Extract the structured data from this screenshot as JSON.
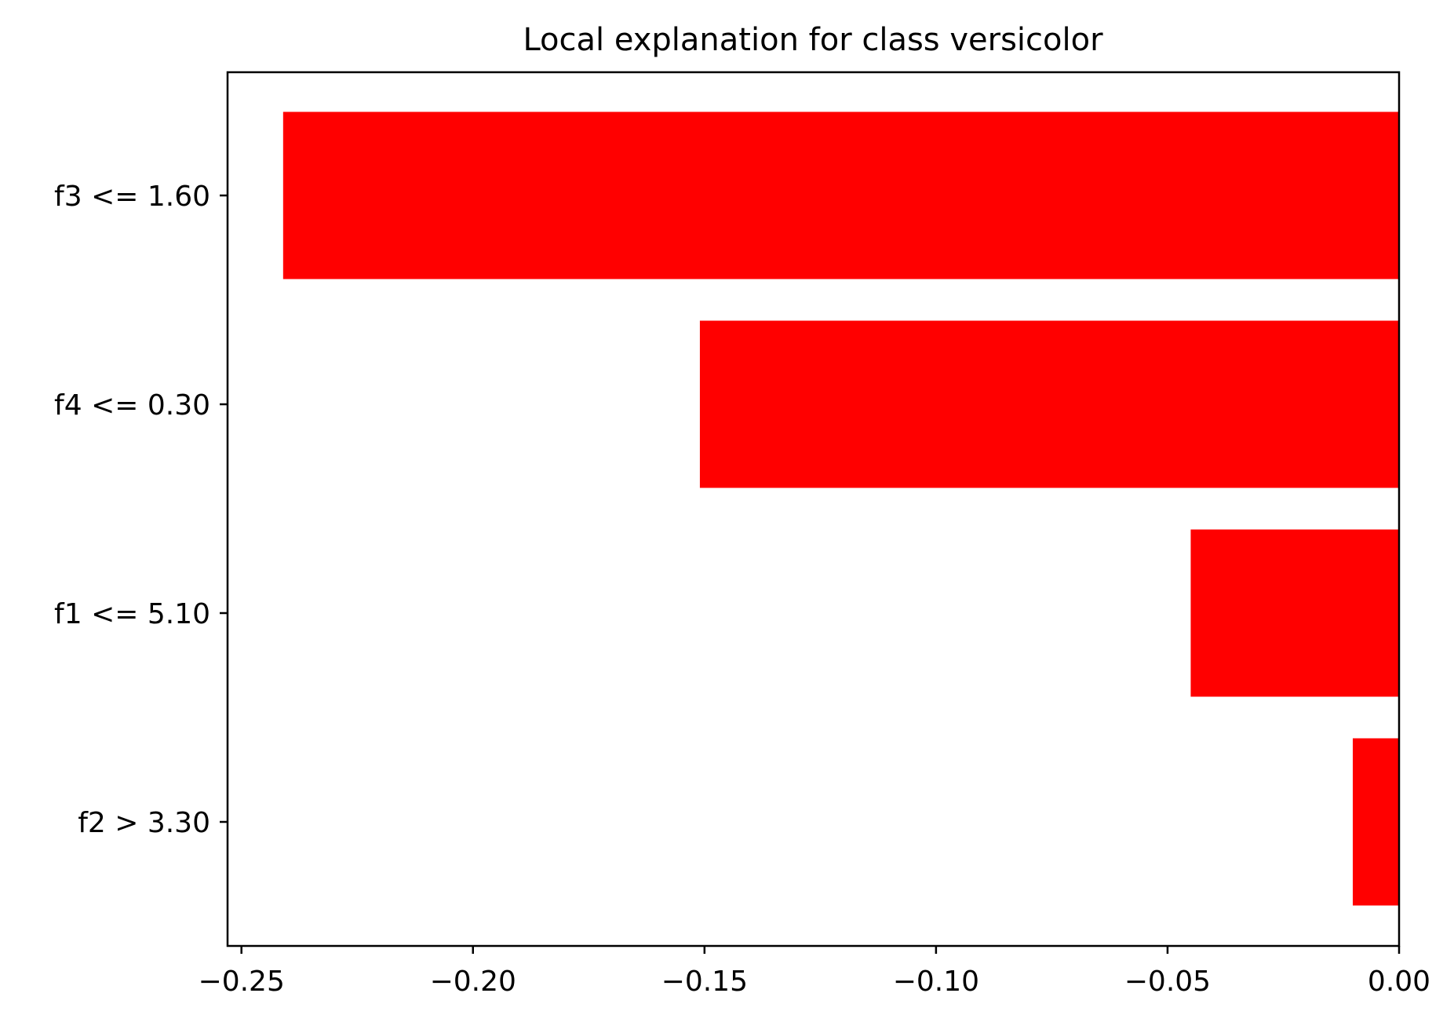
{
  "chart_data": {
    "type": "bar",
    "orientation": "horizontal",
    "title": "Local explanation for class versicolor",
    "xlabel": "",
    "ylabel": "",
    "categories": [
      "f3 <= 1.60",
      "f4 <= 0.30",
      "f1 <= 5.10",
      "f2 > 3.30"
    ],
    "values": [
      -0.241,
      -0.151,
      -0.045,
      -0.01
    ],
    "xlim": [
      -0.253,
      0.0
    ],
    "xticks": [
      -0.25,
      -0.2,
      -0.15,
      -0.1,
      -0.05,
      0.0
    ],
    "xtick_labels": [
      "−0.25",
      "−0.20",
      "−0.15",
      "−0.10",
      "−0.05",
      "0.00"
    ],
    "bar_color": "#ff0000",
    "grid": false,
    "legend": "none"
  }
}
